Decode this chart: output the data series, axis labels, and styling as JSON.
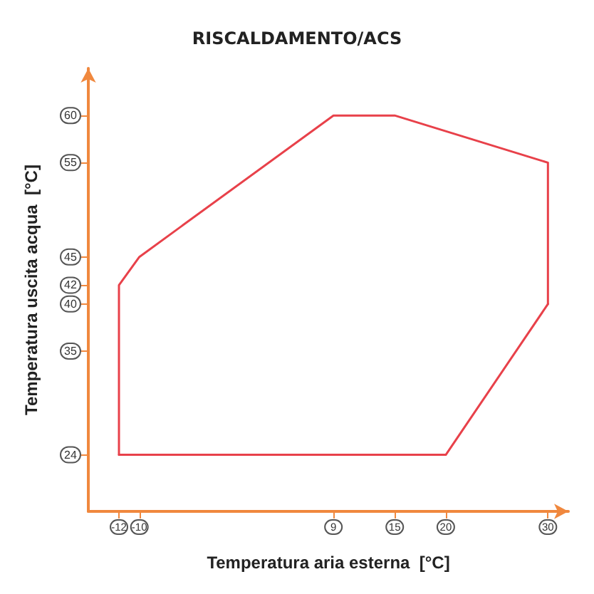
{
  "chart_data": {
    "type": "line",
    "title": "RISCALDAMENTO/ACS",
    "xlabel": "Temperatura aria esterna  [°C]",
    "ylabel": "Temperatura uscita acqua  [°C]",
    "xlim": [
      -15,
      32
    ],
    "ylim": [
      18,
      65
    ],
    "xticks": [
      -12,
      -10,
      9,
      15,
      20,
      30
    ],
    "yticks": [
      24,
      35,
      40,
      42,
      45,
      55,
      60
    ],
    "series": [
      {
        "color": "#e8414a",
        "x": [
          -12,
          -12,
          -10,
          9,
          15,
          30,
          30
        ],
        "values": [
          24,
          42,
          45,
          60,
          60,
          55,
          40
        ]
      },
      {
        "color": "#e8414a",
        "x": [
          -12,
          20,
          30
        ],
        "values": [
          24,
          24,
          40
        ]
      }
    ],
    "marker": "none",
    "line_style": "solid",
    "grid": false
  }
}
